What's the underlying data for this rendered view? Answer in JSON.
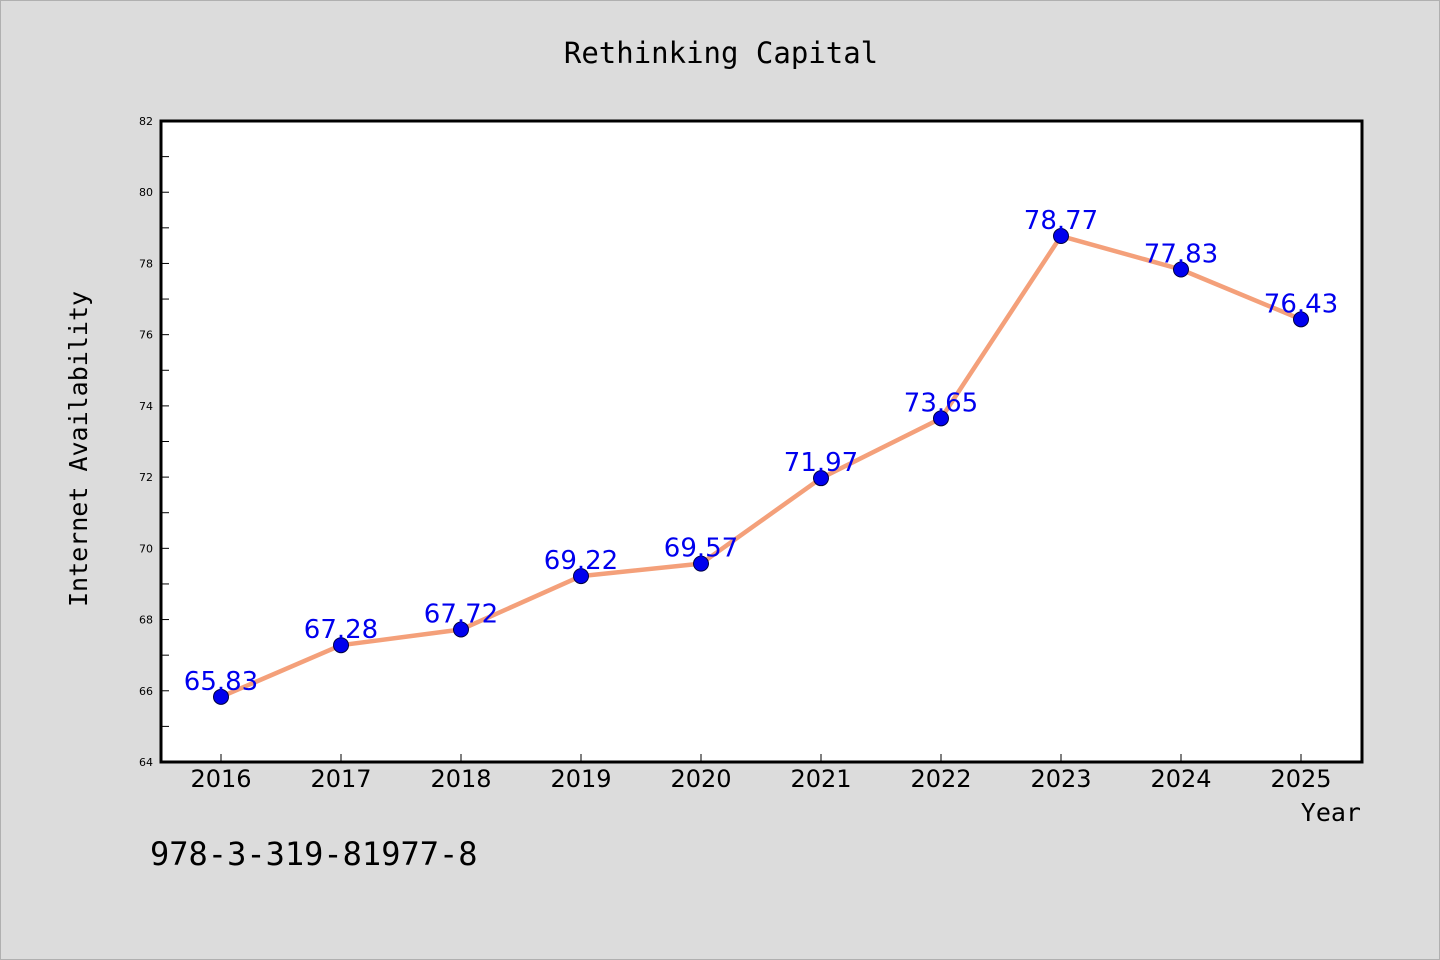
{
  "chart_data": {
    "type": "line",
    "title": "Rethinking Capital",
    "xlabel": "Year",
    "ylabel": "Internet Availability",
    "categories": [
      "2016",
      "2017",
      "2018",
      "2019",
      "2020",
      "2021",
      "2022",
      "2023",
      "2024",
      "2025"
    ],
    "series": [
      {
        "values": [
          65.83,
          67.28,
          67.72,
          69.22,
          69.57,
          71.97,
          73.65,
          78.77,
          77.83,
          76.43
        ],
        "labels": [
          "65.83",
          "67.28",
          "67.72",
          "69.22",
          "69.57",
          "71.97",
          "73.65",
          "78.77",
          "77.83",
          "76.43"
        ],
        "line_color": "#f4a07a",
        "marker_color": "#0000ee",
        "label_color": "#0000ee"
      }
    ],
    "ylim": [
      64,
      82
    ],
    "yticks": [
      64,
      66,
      68,
      70,
      72,
      74,
      76,
      78,
      80,
      82
    ],
    "ytick_labels": [
      "64",
      "66",
      "68",
      "70",
      "72",
      "74",
      "76",
      "78",
      "80",
      "82"
    ],
    "grid": false,
    "legend": "none"
  },
  "footer": {
    "isbn": "978-3-319-81977-8"
  },
  "colors": {
    "background": "#dcdcdc",
    "plot_background": "#ffffff",
    "axis": "#000000"
  }
}
